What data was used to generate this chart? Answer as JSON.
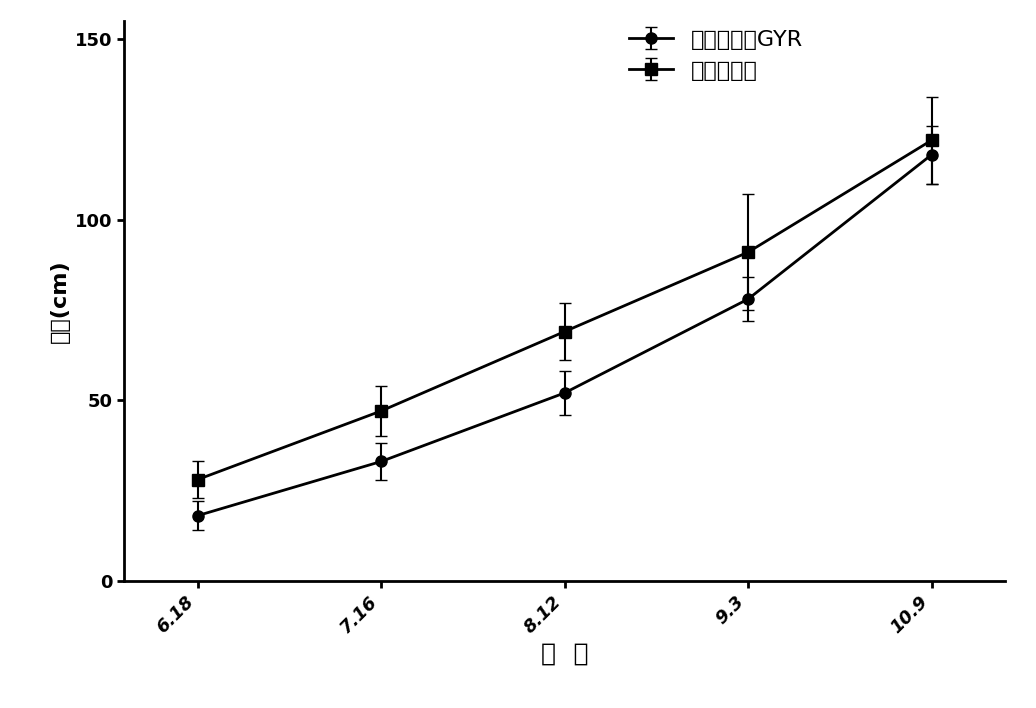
{
  "x_labels": [
    "6.18",
    "7.16",
    "8.12",
    "9.3",
    "10.9"
  ],
  "x_values": [
    0,
    1,
    2,
    3,
    4
  ],
  "series1_name": "转基因青蒿GYR",
  "series1_y": [
    18,
    33,
    52,
    78,
    118
  ],
  "series1_yerr": [
    4,
    5,
    6,
    6,
    8
  ],
  "series2_name": "野生型受体",
  "series2_y": [
    28,
    47,
    69,
    91,
    122
  ],
  "series2_yerr": [
    5,
    7,
    8,
    16,
    12
  ],
  "ylim": [
    0,
    155
  ],
  "yticks": [
    0,
    50,
    100,
    150
  ],
  "ylabel": "冠幅(cm)",
  "xlabel": "日  期",
  "line_color": "#000000",
  "marker1": "o",
  "marker2": "s",
  "marker_size": 8,
  "line_width": 2.0,
  "capsize": 4,
  "elinewidth": 1.5,
  "legend_fontsize": 16,
  "tick_fontsize": 13,
  "xlabel_fontsize": 18,
  "ylabel_fontsize": 16,
  "background_color": "#ffffff"
}
